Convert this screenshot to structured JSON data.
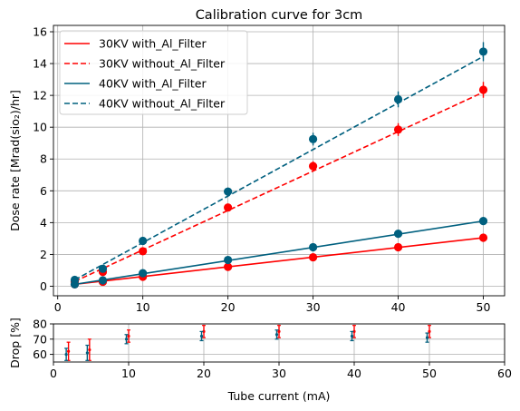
{
  "chart_data": [
    {
      "type": "line",
      "title": "Calibration curve for 3cm",
      "xlabel": "",
      "ylabel": "Dose rate [Mrad(sio₂)/hr]",
      "xlim": [
        -0.5,
        52.5
      ],
      "ylim": [
        -0.6,
        16.4
      ],
      "xticks": [
        "0",
        "10",
        "20",
        "30",
        "40",
        "50"
      ],
      "yticks": [
        "0",
        "2",
        "4",
        "6",
        "8",
        "10",
        "12",
        "14",
        "16"
      ],
      "grid": true,
      "legend_placement": "top-left",
      "x": [
        2,
        5.3,
        10,
        20,
        30,
        40,
        50
      ],
      "series": [
        {
          "name": "30KV with_Al_Filter",
          "color": "#ff0000",
          "dash": false,
          "fit": [
            0.12,
            3.05
          ],
          "values": [
            0.12,
            0.28,
            0.6,
            1.22,
            1.82,
            2.45,
            3.05
          ],
          "errors": [
            0.05,
            0.05,
            0.05,
            0.08,
            0.1,
            0.12,
            0.15
          ]
        },
        {
          "name": "30KV without_Al_Filter",
          "color": "#ff0000",
          "dash": true,
          "fit": [
            0.3,
            12.2
          ],
          "values": [
            0.3,
            0.9,
            2.2,
            4.95,
            7.55,
            9.85,
            12.35
          ],
          "errors": [
            0.08,
            0.1,
            0.15,
            0.2,
            0.3,
            0.4,
            0.5
          ]
        },
        {
          "name": "40KV with_Al_Filter",
          "color": "#00607f",
          "dash": false,
          "fit": [
            0.12,
            4.1
          ],
          "values": [
            0.12,
            0.37,
            0.82,
            1.65,
            2.45,
            3.3,
            4.1
          ],
          "errors": [
            0.05,
            0.05,
            0.05,
            0.08,
            0.1,
            0.12,
            0.15
          ]
        },
        {
          "name": "40KV without_Al_Filter",
          "color": "#00607f",
          "dash": true,
          "fit": [
            0.4,
            14.45
          ],
          "values": [
            0.4,
            1.1,
            2.85,
            5.95,
            9.25,
            11.75,
            14.75
          ],
          "errors": [
            0.1,
            0.15,
            0.2,
            0.25,
            0.4,
            0.5,
            0.6
          ]
        }
      ]
    },
    {
      "type": "scatter",
      "title": "",
      "xlabel": "Tube current (mA)",
      "ylabel": "Drop [%]",
      "xlim": [
        0,
        60
      ],
      "ylim": [
        55,
        80
      ],
      "xticks": [
        "0",
        "10",
        "20",
        "30",
        "40",
        "50",
        "60"
      ],
      "yticks": [
        "60",
        "70",
        "80"
      ],
      "grid": true,
      "x": [
        2,
        4.8,
        10,
        20,
        30,
        40,
        50
      ],
      "series": [
        {
          "name": "",
          "color": "#ff0000",
          "values": [
            62,
            63,
            72,
            75,
            75,
            75,
            75
          ],
          "errors": [
            6,
            7,
            4,
            4,
            4,
            4,
            4
          ]
        },
        {
          "name": "",
          "color": "#00607f",
          "values": [
            60,
            61,
            70,
            72,
            73,
            72,
            71
          ],
          "errors": [
            4,
            5,
            3,
            3,
            3,
            3,
            3
          ]
        }
      ]
    }
  ]
}
